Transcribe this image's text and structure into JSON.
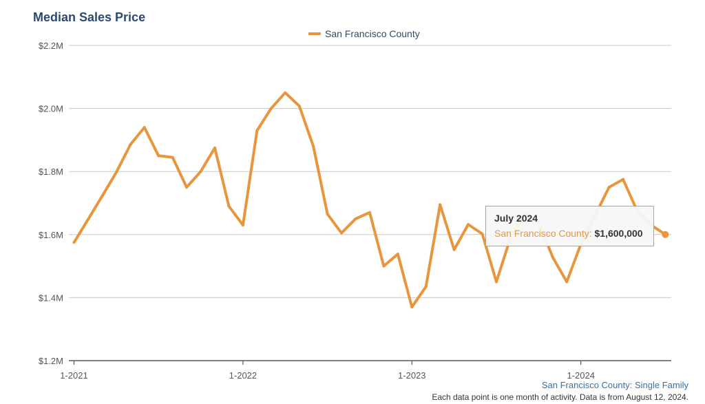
{
  "title": "Median Sales Price",
  "legend": {
    "label": "San Francisco County",
    "color": "#e8963d"
  },
  "tooltip": {
    "title": "July 2024",
    "series": "San Francisco County:",
    "value": "$1,600,000"
  },
  "footer": {
    "source": "San Francisco County: Single Family",
    "note": "Each data point is one month of activity. Data is from August 12, 2024."
  },
  "chart_data": {
    "type": "line",
    "title": "Median Sales Price",
    "ylim": [
      1.2,
      2.2
    ],
    "yunit": "$M",
    "yticks": [
      "$1.2M",
      "$1.4M",
      "$1.6M",
      "$1.8M",
      "$2.0M",
      "$2.2M"
    ],
    "ytick_values": [
      1.2,
      1.4,
      1.6,
      1.8,
      2.0,
      2.2
    ],
    "xticks": [
      "1-2021",
      "1-2022",
      "1-2023",
      "1-2024"
    ],
    "grid": true,
    "legend_position": "top-center",
    "series": [
      {
        "name": "San Francisco County",
        "color": "#e8963d",
        "x": [
          "2021-01",
          "2021-02",
          "2021-03",
          "2021-04",
          "2021-05",
          "2021-06",
          "2021-07",
          "2021-08",
          "2021-09",
          "2021-10",
          "2021-11",
          "2021-12",
          "2022-01",
          "2022-02",
          "2022-03",
          "2022-04",
          "2022-05",
          "2022-06",
          "2022-07",
          "2022-08",
          "2022-09",
          "2022-10",
          "2022-11",
          "2022-12",
          "2023-01",
          "2023-02",
          "2023-03",
          "2023-04",
          "2023-05",
          "2023-06",
          "2023-07",
          "2023-08",
          "2023-09",
          "2023-10",
          "2023-11",
          "2023-12",
          "2024-01",
          "2024-02",
          "2024-03",
          "2024-04",
          "2024-05",
          "2024-06",
          "2024-07"
        ],
        "values": [
          1.575,
          1.648,
          1.722,
          1.797,
          1.885,
          1.94,
          1.85,
          1.845,
          1.75,
          1.8,
          1.875,
          1.69,
          1.63,
          1.93,
          2.0,
          2.05,
          2.008,
          1.88,
          1.665,
          1.605,
          1.65,
          1.67,
          1.5,
          1.538,
          1.37,
          1.435,
          1.695,
          1.552,
          1.632,
          1.602,
          1.45,
          1.59,
          1.665,
          1.64,
          1.528,
          1.45,
          1.57,
          1.66,
          1.75,
          1.775,
          1.675,
          1.63,
          1.6
        ]
      }
    ]
  }
}
